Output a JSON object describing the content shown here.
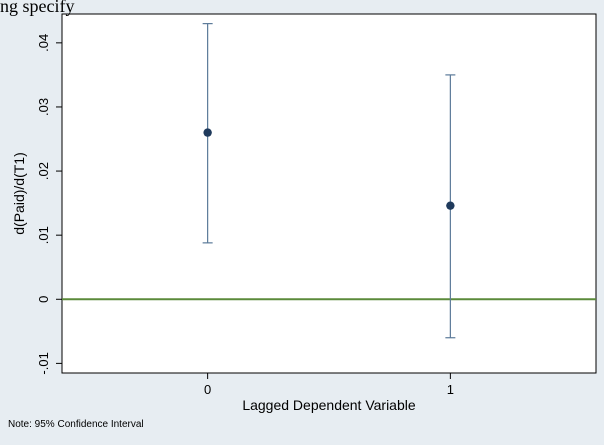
{
  "top_text": "ng specify",
  "note": "Note: 95% Confidence Interval",
  "colors": {
    "background": "#e7edf2",
    "plot_bg": "#ffffff",
    "point": "#1f3a5c",
    "ci": "#5b7a99",
    "zero_line": "#5b8a3a"
  },
  "chart_data": {
    "type": "scatter",
    "title": "",
    "xlabel": "Lagged Dependent Variable",
    "ylabel": "d(Paid)/d(T1)",
    "x": [
      0,
      1
    ],
    "xticks": [
      "0",
      "1"
    ],
    "xlim": [
      -0.6,
      1.6
    ],
    "ylim": [
      -0.0115,
      0.0445
    ],
    "yticks": [
      {
        "value": -0.01,
        "label": "-.01"
      },
      {
        "value": 0,
        "label": "0"
      },
      {
        "value": 0.01,
        "label": ".01"
      },
      {
        "value": 0.02,
        "label": ".02"
      },
      {
        "value": 0.03,
        "label": ".03"
      },
      {
        "value": 0.04,
        "label": ".04"
      }
    ],
    "series": [
      {
        "values": [
          0.026,
          0.0146
        ],
        "ci_low": [
          0.0088,
          -0.006
        ],
        "ci_high": [
          0.043,
          0.035
        ]
      }
    ],
    "reference_line": 0,
    "grid": false,
    "legend": "none"
  }
}
